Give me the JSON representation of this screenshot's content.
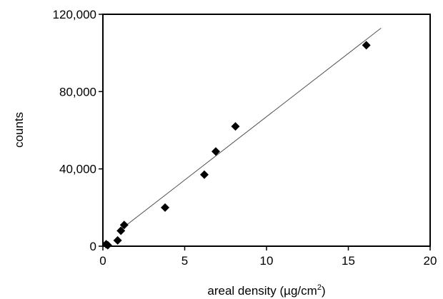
{
  "chart_data": {
    "type": "scatter",
    "title": "",
    "xlabel": "areal density (µg/cm",
    "xlabel_sup": "2",
    "xlabel_close": ")",
    "ylabel": "counts",
    "xlim": [
      0,
      20
    ],
    "ylim": [
      0,
      120000
    ],
    "x_ticks": [
      0,
      5,
      10,
      15,
      20
    ],
    "x_tick_labels": [
      "0",
      "5",
      "10",
      "15",
      "20"
    ],
    "y_ticks": [
      0,
      40000,
      80000,
      120000
    ],
    "y_tick_labels": [
      "0",
      "40,000",
      "80,000",
      "120,000"
    ],
    "grid": false,
    "legend": "none",
    "marker": "diamond",
    "marker_color": "#000000",
    "points": [
      {
        "x": 0.2,
        "y": 1000
      },
      {
        "x": 0.3,
        "y": 500
      },
      {
        "x": 0.9,
        "y": 3000
      },
      {
        "x": 1.1,
        "y": 8000
      },
      {
        "x": 1.3,
        "y": 11000
      },
      {
        "x": 3.8,
        "y": 20000
      },
      {
        "x": 6.2,
        "y": 37000
      },
      {
        "x": 6.9,
        "y": 49000
      },
      {
        "x": 8.1,
        "y": 62000
      },
      {
        "x": 16.1,
        "y": 104000
      }
    ],
    "trendline": {
      "type": "linear",
      "x_range": [
        1.1,
        17
      ],
      "slope": 6550,
      "intercept": 1500
    }
  }
}
